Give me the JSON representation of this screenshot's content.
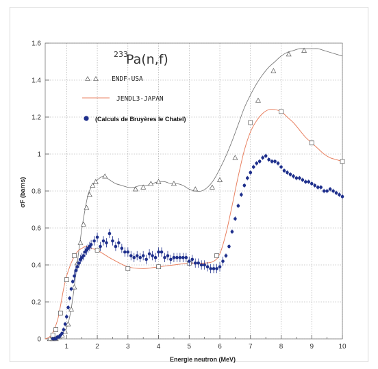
{
  "chart_data": {
    "type": "scatter",
    "title_prefix": "233",
    "title_main": "Pa(n,f)",
    "xlabel": "Energie neutron (MeV)",
    "ylabel": "σF (barns)",
    "xlim": [
      0.3,
      10
    ],
    "ylim": [
      0,
      1.6
    ],
    "xticks": [
      "1",
      "2",
      "3",
      "4",
      "5",
      "6",
      "7",
      "8",
      "9",
      "10"
    ],
    "yticks": [
      "0",
      "0.2",
      "0.4",
      "0.6",
      "0.8",
      "1",
      "1.2",
      "1.4",
      "1.6"
    ],
    "grid": true,
    "legend_placement": "top-left",
    "colors": {
      "endf": "#7a7a7a",
      "jendl": "#e88060",
      "calc": "#1e2f8c"
    },
    "series": [
      {
        "name": "ENDF-USA",
        "style": "line-with-triangle-markers",
        "x": [
          0.3,
          0.5,
          0.7,
          0.9,
          1.0,
          1.1,
          1.2,
          1.3,
          1.4,
          1.5,
          1.6,
          1.7,
          1.8,
          1.9,
          2.0,
          2.2,
          2.4,
          2.6,
          2.8,
          3.0,
          3.2,
          3.4,
          3.6,
          3.8,
          4.0,
          4.2,
          4.4,
          4.6,
          4.8,
          5.0,
          5.2,
          5.4,
          5.6,
          5.8,
          6.0,
          6.2,
          6.4,
          6.6,
          6.8,
          7.0,
          7.2,
          7.4,
          7.6,
          7.8,
          8.0,
          8.2,
          8.4,
          8.6,
          8.8,
          9.0,
          9.2,
          9.4,
          9.6,
          9.8,
          10.0
        ],
        "y": [
          0.0,
          0.0,
          0.01,
          0.03,
          0.06,
          0.12,
          0.22,
          0.35,
          0.48,
          0.6,
          0.7,
          0.78,
          0.82,
          0.84,
          0.86,
          0.88,
          0.86,
          0.84,
          0.83,
          0.82,
          0.82,
          0.83,
          0.83,
          0.84,
          0.85,
          0.85,
          0.84,
          0.84,
          0.83,
          0.81,
          0.8,
          0.8,
          0.82,
          0.86,
          0.92,
          0.99,
          1.07,
          1.16,
          1.25,
          1.32,
          1.38,
          1.43,
          1.47,
          1.5,
          1.53,
          1.55,
          1.56,
          1.57,
          1.57,
          1.57,
          1.57,
          1.56,
          1.55,
          1.54,
          1.53
        ],
        "marker_x": [
          0.45,
          0.55,
          0.65,
          0.75,
          0.85,
          0.95,
          1.05,
          1.15,
          1.25,
          1.35,
          1.45,
          1.55,
          1.65,
          1.75,
          1.85,
          1.95,
          2.25,
          3.25,
          3.5,
          3.75,
          4.0,
          4.5,
          5.2,
          5.75,
          6.0,
          6.5,
          7.25,
          7.75,
          8.25,
          8.75
        ],
        "marker_y": [
          0.0,
          0.0,
          0.0,
          0.01,
          0.02,
          0.04,
          0.08,
          0.16,
          0.28,
          0.41,
          0.52,
          0.62,
          0.71,
          0.78,
          0.83,
          0.85,
          0.88,
          0.81,
          0.82,
          0.84,
          0.85,
          0.84,
          0.81,
          0.82,
          0.86,
          0.98,
          1.29,
          1.45,
          1.54,
          1.56
        ]
      },
      {
        "name": "JENDL3-JAPAN",
        "style": "line-with-square-markers",
        "x": [
          0.3,
          0.5,
          0.7,
          0.8,
          0.9,
          1.0,
          1.1,
          1.2,
          1.3,
          1.4,
          1.5,
          1.6,
          1.7,
          1.8,
          2.0,
          2.2,
          2.5,
          3.0,
          3.5,
          4.0,
          4.5,
          5.0,
          5.5,
          5.8,
          6.0,
          6.2,
          6.4,
          6.6,
          6.8,
          7.0,
          7.2,
          7.4,
          7.6,
          7.8,
          8.0,
          8.2,
          8.4,
          8.6,
          8.8,
          9.0,
          9.2,
          9.4,
          9.6,
          9.8,
          10.0
        ],
        "y": [
          0.0,
          0.02,
          0.1,
          0.18,
          0.27,
          0.34,
          0.39,
          0.43,
          0.46,
          0.48,
          0.49,
          0.5,
          0.5,
          0.49,
          0.48,
          0.46,
          0.43,
          0.39,
          0.38,
          0.39,
          0.4,
          0.41,
          0.41,
          0.42,
          0.46,
          0.57,
          0.72,
          0.88,
          1.02,
          1.12,
          1.18,
          1.22,
          1.24,
          1.24,
          1.23,
          1.2,
          1.17,
          1.13,
          1.09,
          1.06,
          1.03,
          1.0,
          0.98,
          0.97,
          0.96
        ],
        "marker_x": [
          0.55,
          0.65,
          0.8,
          1.0,
          1.25,
          2.0,
          3.0,
          4.0,
          5.0,
          5.9,
          7.0,
          8.0,
          9.0,
          10.0
        ],
        "marker_y": [
          0.02,
          0.05,
          0.14,
          0.32,
          0.45,
          0.48,
          0.38,
          0.39,
          0.41,
          0.45,
          1.17,
          1.23,
          1.06,
          0.96
        ]
      },
      {
        "name": "(Calculs de Bruyères le Chatel)",
        "style": "markers-with-error-bars",
        "x": [
          0.55,
          0.6,
          0.65,
          0.7,
          0.75,
          0.8,
          0.85,
          0.9,
          0.95,
          1.0,
          1.05,
          1.1,
          1.15,
          1.2,
          1.25,
          1.3,
          1.35,
          1.4,
          1.45,
          1.5,
          1.55,
          1.6,
          1.65,
          1.7,
          1.75,
          1.8,
          1.9,
          2.0,
          2.1,
          2.2,
          2.3,
          2.4,
          2.5,
          2.6,
          2.7,
          2.8,
          2.9,
          3.0,
          3.1,
          3.2,
          3.3,
          3.4,
          3.5,
          3.6,
          3.7,
          3.8,
          3.9,
          4.0,
          4.1,
          4.2,
          4.3,
          4.4,
          4.5,
          4.6,
          4.7,
          4.8,
          4.9,
          5.0,
          5.1,
          5.2,
          5.3,
          5.4,
          5.5,
          5.6,
          5.7,
          5.8,
          5.9,
          6.0,
          6.1,
          6.2,
          6.3,
          6.4,
          6.5,
          6.6,
          6.7,
          6.8,
          6.9,
          7.0,
          7.1,
          7.2,
          7.3,
          7.4,
          7.5,
          7.6,
          7.7,
          7.8,
          7.9,
          8.0,
          8.1,
          8.2,
          8.3,
          8.4,
          8.5,
          8.6,
          8.7,
          8.8,
          8.9,
          9.0,
          9.1,
          9.2,
          9.3,
          9.4,
          9.5,
          9.6,
          9.7,
          9.8,
          9.9,
          10.0
        ],
        "y": [
          0.0,
          0.0,
          0.0,
          0.01,
          0.01,
          0.02,
          0.03,
          0.05,
          0.08,
          0.12,
          0.17,
          0.22,
          0.27,
          0.31,
          0.34,
          0.37,
          0.39,
          0.41,
          0.43,
          0.44,
          0.45,
          0.47,
          0.48,
          0.49,
          0.5,
          0.51,
          0.53,
          0.55,
          0.5,
          0.53,
          0.52,
          0.57,
          0.53,
          0.5,
          0.52,
          0.49,
          0.47,
          0.47,
          0.45,
          0.44,
          0.45,
          0.44,
          0.45,
          0.43,
          0.46,
          0.45,
          0.44,
          0.47,
          0.47,
          0.44,
          0.45,
          0.43,
          0.44,
          0.44,
          0.44,
          0.44,
          0.44,
          0.42,
          0.43,
          0.41,
          0.41,
          0.4,
          0.4,
          0.39,
          0.38,
          0.38,
          0.38,
          0.39,
          0.42,
          0.45,
          0.5,
          0.58,
          0.65,
          0.72,
          0.78,
          0.83,
          0.87,
          0.9,
          0.93,
          0.95,
          0.96,
          0.98,
          0.99,
          0.97,
          0.96,
          0.96,
          0.95,
          0.93,
          0.91,
          0.9,
          0.89,
          0.88,
          0.87,
          0.87,
          0.86,
          0.85,
          0.85,
          0.84,
          0.83,
          0.82,
          0.82,
          0.8,
          0.8,
          0.81,
          0.8,
          0.79,
          0.78,
          0.77
        ]
      }
    ]
  }
}
